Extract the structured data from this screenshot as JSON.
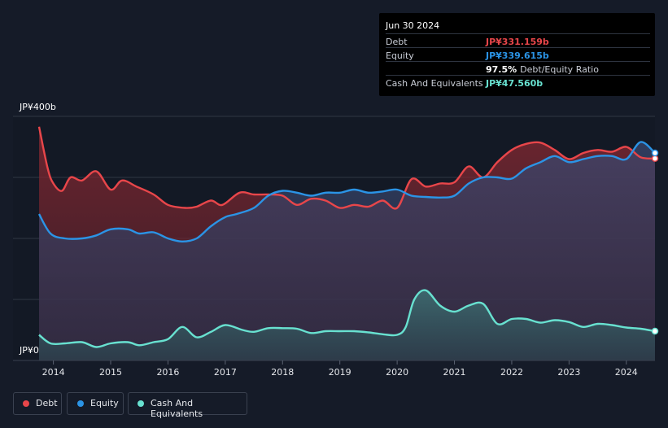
{
  "tooltip": {
    "date": "Jun 30 2024",
    "rows": [
      {
        "label": "Debt",
        "value": "JP¥331.159b",
        "color": "#e8464a"
      },
      {
        "label": "Equity",
        "value": "JP¥339.615b",
        "color": "#2b94e6"
      },
      {
        "label": "",
        "value": "97.5%",
        "extra": "Debt/Equity Ratio",
        "color": "#ffffff"
      },
      {
        "label": "Cash And Equivalents",
        "value": "JP¥47.560b",
        "color": "#68e1d0"
      }
    ]
  },
  "legend": [
    {
      "label": "Debt",
      "color": "#e8464a"
    },
    {
      "label": "Equity",
      "color": "#2b94e6"
    },
    {
      "label": "Cash And Equivalents",
      "color": "#68e1d0"
    }
  ],
  "chart_data": {
    "type": "area",
    "title": "",
    "xlabel": "",
    "ylabel": "",
    "ylim": [
      0,
      400
    ],
    "xlim": [
      2013.75,
      2024.5
    ],
    "y_tick_labels": [
      "JP¥0",
      "JP¥400b"
    ],
    "x_ticks": [
      2014,
      2015,
      2016,
      2017,
      2018,
      2019,
      2020,
      2021,
      2022,
      2023,
      2024
    ],
    "x_tick_labels": [
      "2014",
      "2015",
      "2016",
      "2017",
      "2018",
      "2019",
      "2020",
      "2021",
      "2022",
      "2023",
      "2024"
    ],
    "unit": "JP¥ billions",
    "series": [
      {
        "name": "Debt",
        "color": "#e8464a",
        "x": [
          2013.75,
          2013.9,
          2014.0,
          2014.15,
          2014.3,
          2014.5,
          2014.75,
          2015.0,
          2015.2,
          2015.45,
          2015.75,
          2016.0,
          2016.3,
          2016.5,
          2016.75,
          2016.95,
          2017.25,
          2017.5,
          2017.75,
          2018.0,
          2018.25,
          2018.5,
          2018.75,
          2019.0,
          2019.25,
          2019.5,
          2019.75,
          2020.0,
          2020.25,
          2020.5,
          2020.75,
          2021.0,
          2021.25,
          2021.5,
          2021.75,
          2022.0,
          2022.25,
          2022.5,
          2022.75,
          2023.0,
          2023.25,
          2023.5,
          2023.75,
          2024.0,
          2024.25,
          2024.5
        ],
        "values": [
          383,
          315,
          290,
          278,
          300,
          295,
          310,
          280,
          295,
          285,
          272,
          255,
          250,
          252,
          262,
          255,
          275,
          272,
          272,
          270,
          255,
          265,
          262,
          250,
          255,
          252,
          262,
          250,
          297,
          285,
          290,
          292,
          318,
          300,
          325,
          345,
          355,
          357,
          345,
          330,
          340,
          345,
          342,
          350,
          333,
          331
        ]
      },
      {
        "name": "Equity",
        "color": "#2b94e6",
        "x": [
          2013.75,
          2013.95,
          2014.2,
          2014.5,
          2014.75,
          2015.0,
          2015.3,
          2015.5,
          2015.75,
          2016.0,
          2016.25,
          2016.5,
          2016.75,
          2017.0,
          2017.2,
          2017.5,
          2017.75,
          2018.0,
          2018.25,
          2018.5,
          2018.75,
          2019.0,
          2019.25,
          2019.5,
          2019.75,
          2020.0,
          2020.25,
          2020.5,
          2020.75,
          2021.0,
          2021.25,
          2021.5,
          2021.75,
          2022.0,
          2022.25,
          2022.5,
          2022.75,
          2023.0,
          2023.25,
          2023.5,
          2023.75,
          2024.0,
          2024.25,
          2024.5
        ],
        "values": [
          240,
          208,
          200,
          200,
          205,
          215,
          215,
          208,
          210,
          200,
          195,
          200,
          220,
          235,
          240,
          250,
          270,
          278,
          275,
          270,
          275,
          275,
          280,
          275,
          277,
          280,
          270,
          268,
          267,
          270,
          290,
          300,
          300,
          298,
          315,
          325,
          335,
          325,
          330,
          335,
          335,
          330,
          358,
          340
        ]
      },
      {
        "name": "Cash And Equivalents",
        "color": "#68e1d0",
        "x": [
          2013.75,
          2013.95,
          2014.2,
          2014.5,
          2014.75,
          2015.0,
          2015.3,
          2015.5,
          2015.75,
          2016.0,
          2016.25,
          2016.5,
          2016.75,
          2017.0,
          2017.3,
          2017.5,
          2017.75,
          2018.0,
          2018.25,
          2018.5,
          2018.75,
          2019.0,
          2019.25,
          2019.5,
          2019.75,
          2020.0,
          2020.15,
          2020.3,
          2020.5,
          2020.75,
          2021.0,
          2021.25,
          2021.5,
          2021.75,
          2022.0,
          2022.25,
          2022.5,
          2022.75,
          2023.0,
          2023.25,
          2023.5,
          2023.75,
          2024.0,
          2024.25,
          2024.5
        ],
        "values": [
          42,
          28,
          28,
          30,
          22,
          28,
          30,
          25,
          30,
          35,
          55,
          38,
          47,
          58,
          50,
          47,
          53,
          53,
          52,
          45,
          48,
          48,
          48,
          46,
          43,
          42,
          55,
          100,
          115,
          90,
          80,
          90,
          93,
          60,
          68,
          68,
          62,
          66,
          63,
          55,
          60,
          58,
          54,
          52,
          48
        ]
      }
    ]
  }
}
